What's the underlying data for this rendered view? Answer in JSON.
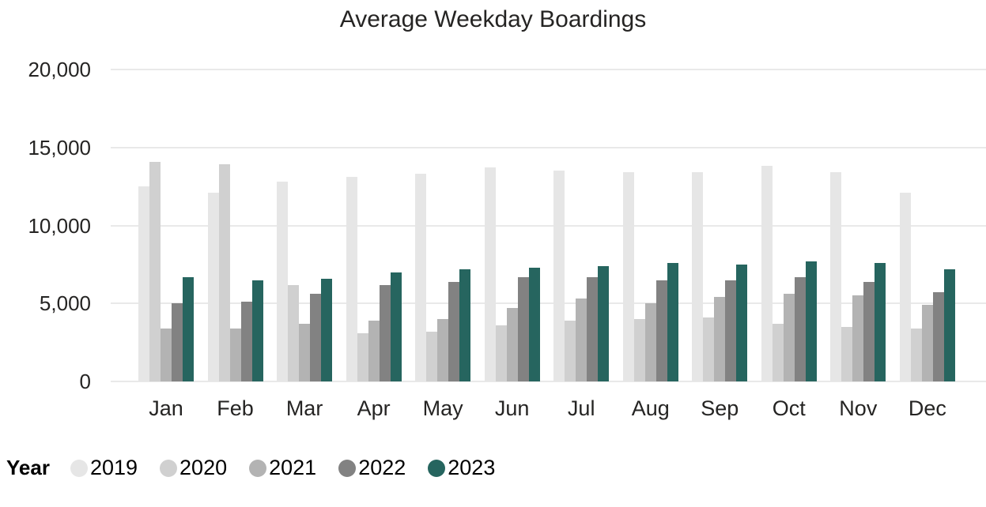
{
  "chart_data": {
    "type": "bar",
    "title": "Average Weekday Boardings",
    "legend_title": "Year",
    "legend_position": "bottom-left",
    "grid": true,
    "ylim": [
      0,
      20000
    ],
    "ytick_step": 5000,
    "ytick_labels": [
      "0",
      "5,000",
      "10,000",
      "15,000",
      "20,000"
    ],
    "categories": [
      "Jan",
      "Feb",
      "Mar",
      "Apr",
      "May",
      "Jun",
      "Jul",
      "Aug",
      "Sep",
      "Oct",
      "Nov",
      "Dec"
    ],
    "series": [
      {
        "name": "2019",
        "color": "#e6e6e6",
        "values": [
          12500,
          12100,
          12800,
          13100,
          13300,
          13700,
          13500,
          13400,
          13400,
          13800,
          13400,
          12100
        ]
      },
      {
        "name": "2020",
        "color": "#d0d0d0",
        "values": [
          14100,
          13900,
          6200,
          3100,
          3200,
          3600,
          3900,
          4000,
          4100,
          3700,
          3500,
          3400
        ]
      },
      {
        "name": "2021",
        "color": "#b3b3b3",
        "values": [
          3400,
          3400,
          3700,
          3900,
          4000,
          4700,
          5300,
          5000,
          5400,
          5600,
          5500,
          4900
        ]
      },
      {
        "name": "2022",
        "color": "#828282",
        "values": [
          5000,
          5100,
          5600,
          6200,
          6400,
          6700,
          6700,
          6500,
          6500,
          6700,
          6400,
          5700
        ]
      },
      {
        "name": "2023",
        "color": "#26655f",
        "values": [
          6700,
          6500,
          6600,
          7000,
          7200,
          7300,
          7400,
          7600,
          7500,
          7700,
          7600,
          7200
        ]
      }
    ]
  }
}
